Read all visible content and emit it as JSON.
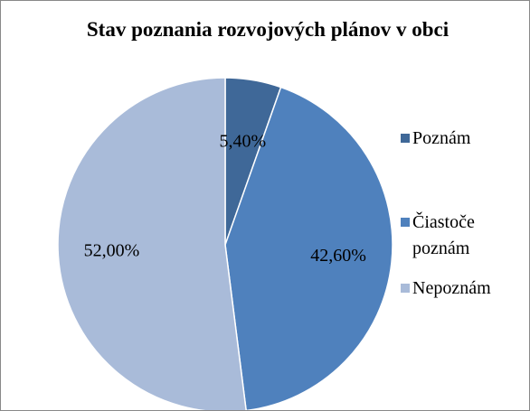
{
  "chart_data": {
    "type": "pie",
    "title": "Stav poznania rozvojových plánov v obci",
    "categories": [
      "Poznám",
      "Čiastoče poznám",
      "Nepoznám"
    ],
    "values": [
      5.4,
      42.6,
      52.0
    ],
    "value_labels": [
      "5,40%",
      "42,60%",
      "52,00%"
    ],
    "colors": [
      "#3f6898",
      "#4f81bd",
      "#a9bbd9"
    ],
    "legend": "right"
  }
}
